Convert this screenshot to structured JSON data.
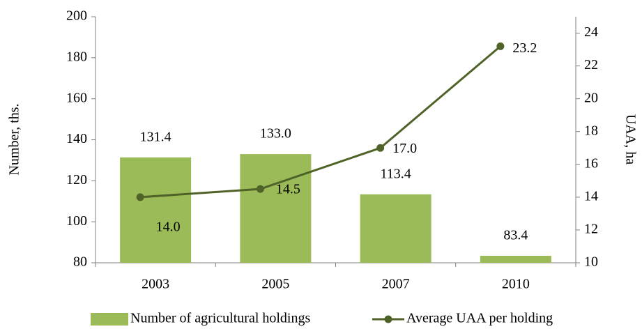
{
  "chart_data": {
    "type": "bar",
    "categories": [
      "2003",
      "2005",
      "2007",
      "2010"
    ],
    "y_label": "Number, ths.",
    "y2_label": "UAA, ha",
    "ylim": [
      80,
      200
    ],
    "yticks": [
      80,
      100,
      120,
      140,
      160,
      180,
      200
    ],
    "y2lim": [
      10,
      25
    ],
    "y2ticks": [
      10,
      12,
      14,
      16,
      18,
      20,
      22,
      24
    ],
    "legend": "bottom",
    "series": [
      {
        "name": "Number of agricultural holdings",
        "type": "bar",
        "color": "#9bbb59",
        "values": [
          131.4,
          133.0,
          113.4,
          83.4
        ],
        "value_labels": [
          "131.4",
          "133.0",
          "113.4",
          "83.4"
        ]
      },
      {
        "name": "Average UAA per holding",
        "type": "line",
        "axis": "y2",
        "color": "#4f6228",
        "values": [
          14.0,
          14.5,
          17.0,
          23.2
        ],
        "value_labels": [
          "14.0",
          "14.5",
          "17.0",
          "23.2"
        ]
      }
    ]
  }
}
